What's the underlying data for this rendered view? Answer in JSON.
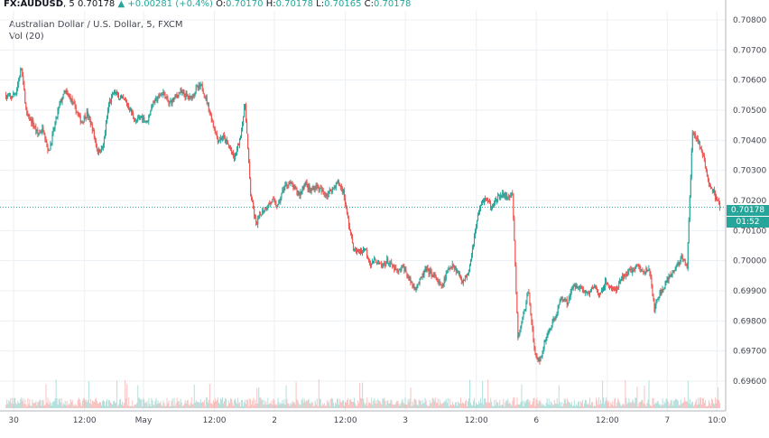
{
  "header": {
    "symbol": "FX:AUDUSD",
    "interval": "5",
    "last": "0.70178",
    "change_arrow": "▲",
    "change": "+0.00281 (+0.4%)",
    "o_label": "O:",
    "o": "0.70170",
    "h_label": "H:",
    "h": "0.70178",
    "l_label": "L:",
    "l": "0.70165",
    "c_label": "C:",
    "c": "0.70178",
    "description": "Australian Dollar / U.S. Dollar, 5, FXCM",
    "vol_label": "Vol (20)"
  },
  "price_tag": {
    "value": "0.70178",
    "countdown": "01:52"
  },
  "colors": {
    "up": "#26a69a",
    "down": "#ef5350",
    "grid": "#eceff2",
    "last_line": "#26a69a"
  },
  "chart_data": {
    "type": "candlestick",
    "ylim": [
      0.6951,
      0.7083
    ],
    "y_ticks": [
      "0.70800",
      "0.70700",
      "0.70600",
      "0.70500",
      "0.70400",
      "0.70300",
      "0.70200",
      "0.70100",
      "0.70000",
      "0.69900",
      "0.69800",
      "0.69700",
      "0.69600"
    ],
    "x_ticks": [
      {
        "label": "30",
        "t": 0.5
      },
      {
        "label": "12:00",
        "t": 13.5
      },
      {
        "label": "May",
        "t": 24.3
      },
      {
        "label": "12:00",
        "t": 37.3
      },
      {
        "label": "2",
        "t": 48.3
      },
      {
        "label": "12:00",
        "t": 61.3
      },
      {
        "label": "3",
        "t": 72.3
      },
      {
        "label": "12:00",
        "t": 85.3
      },
      {
        "label": "6",
        "t": 96.3
      },
      {
        "label": "12:00",
        "t": 109.3
      },
      {
        "label": "7",
        "t": 120.3
      },
      {
        "label": "10:0",
        "t": 129.4
      }
    ],
    "t_range": [
      -2,
      131
    ],
    "last_price": 0.70178,
    "price_path": [
      [
        -1,
        0.7055
      ],
      [
        0,
        0.7054
      ],
      [
        1,
        0.7056
      ],
      [
        2,
        0.7064
      ],
      [
        3,
        0.7048
      ],
      [
        4,
        0.7046
      ],
      [
        5,
        0.7042
      ],
      [
        6,
        0.7044
      ],
      [
        7,
        0.7036
      ],
      [
        8,
        0.7044
      ],
      [
        9,
        0.7052
      ],
      [
        10,
        0.7056
      ],
      [
        11,
        0.7054
      ],
      [
        12,
        0.705
      ],
      [
        13,
        0.7046
      ],
      [
        14,
        0.7049
      ],
      [
        15,
        0.7044
      ],
      [
        16,
        0.7036
      ],
      [
        17,
        0.7038
      ],
      [
        18,
        0.7052
      ],
      [
        19,
        0.7056
      ],
      [
        20,
        0.7054
      ],
      [
        21,
        0.7053
      ],
      [
        22,
        0.705
      ],
      [
        23,
        0.7046
      ],
      [
        24,
        0.7048
      ],
      [
        25,
        0.7046
      ],
      [
        26,
        0.7052
      ],
      [
        27,
        0.7054
      ],
      [
        28,
        0.7056
      ],
      [
        29,
        0.7052
      ],
      [
        30,
        0.7054
      ],
      [
        31,
        0.7056
      ],
      [
        32,
        0.7055
      ],
      [
        33,
        0.7054
      ],
      [
        34,
        0.7057
      ],
      [
        35,
        0.7058
      ],
      [
        36,
        0.7053
      ],
      [
        37,
        0.7046
      ],
      [
        38,
        0.704
      ],
      [
        39,
        0.7041
      ],
      [
        40,
        0.7038
      ],
      [
        41,
        0.7034
      ],
      [
        42,
        0.704
      ],
      [
        43,
        0.7052
      ],
      [
        44,
        0.7022
      ],
      [
        45,
        0.7012
      ],
      [
        46,
        0.7016
      ],
      [
        47,
        0.7018
      ],
      [
        48,
        0.702
      ],
      [
        49,
        0.7018
      ],
      [
        50,
        0.7024
      ],
      [
        51,
        0.7026
      ],
      [
        52,
        0.7024
      ],
      [
        53,
        0.7022
      ],
      [
        54,
        0.7026
      ],
      [
        55,
        0.7023
      ],
      [
        56,
        0.7025
      ],
      [
        57,
        0.7023
      ],
      [
        58,
        0.7022
      ],
      [
        59,
        0.7024
      ],
      [
        60,
        0.7026
      ],
      [
        61,
        0.7023
      ],
      [
        62,
        0.7012
      ],
      [
        63,
        0.7003
      ],
      [
        64,
        0.7003
      ],
      [
        65,
        0.7004
      ],
      [
        66,
        0.6999
      ],
      [
        67,
        0.7
      ],
      [
        68,
        0.6998
      ],
      [
        69,
        0.7
      ],
      [
        70,
        0.6998
      ],
      [
        71,
        0.6996
      ],
      [
        72,
        0.6998
      ],
      [
        73,
        0.6994
      ],
      [
        74,
        0.6991
      ],
      [
        75,
        0.6993
      ],
      [
        76,
        0.6997
      ],
      [
        77,
        0.6996
      ],
      [
        78,
        0.6994
      ],
      [
        79,
        0.6991
      ],
      [
        80,
        0.6996
      ],
      [
        81,
        0.6999
      ],
      [
        82,
        0.6996
      ],
      [
        83,
        0.6993
      ],
      [
        84,
        0.6997
      ],
      [
        85,
        0.7008
      ],
      [
        86,
        0.7018
      ],
      [
        87,
        0.7021
      ],
      [
        88,
        0.7018
      ],
      [
        89,
        0.702
      ],
      [
        90,
        0.7022
      ],
      [
        91,
        0.7021
      ],
      [
        92,
        0.7022
      ],
      [
        93,
        0.6974
      ],
      [
        94,
        0.6982
      ],
      [
        95,
        0.699
      ],
      [
        96,
        0.697
      ],
      [
        97,
        0.6966
      ],
      [
        98,
        0.6974
      ],
      [
        99,
        0.6978
      ],
      [
        100,
        0.6982
      ],
      [
        101,
        0.6988
      ],
      [
        102,
        0.6986
      ],
      [
        103,
        0.6991
      ],
      [
        104,
        0.6992
      ],
      [
        105,
        0.699
      ],
      [
        106,
        0.6989
      ],
      [
        107,
        0.6992
      ],
      [
        108,
        0.6988
      ],
      [
        109,
        0.6993
      ],
      [
        110,
        0.6991
      ],
      [
        111,
        0.699
      ],
      [
        112,
        0.6994
      ],
      [
        113,
        0.6996
      ],
      [
        114,
        0.6997
      ],
      [
        115,
        0.6998
      ],
      [
        116,
        0.6996
      ],
      [
        117,
        0.6998
      ],
      [
        118,
        0.6984
      ],
      [
        119,
        0.6989
      ],
      [
        120,
        0.6992
      ],
      [
        121,
        0.6995
      ],
      [
        122,
        0.6998
      ],
      [
        123,
        0.7001
      ],
      [
        124,
        0.6998
      ],
      [
        125,
        0.7043
      ],
      [
        126,
        0.704
      ],
      [
        127,
        0.7034
      ],
      [
        128,
        0.7026
      ],
      [
        129,
        0.7022
      ],
      [
        130,
        0.70178
      ]
    ],
    "gaps": [
      [
        93,
        125
      ]
    ]
  }
}
